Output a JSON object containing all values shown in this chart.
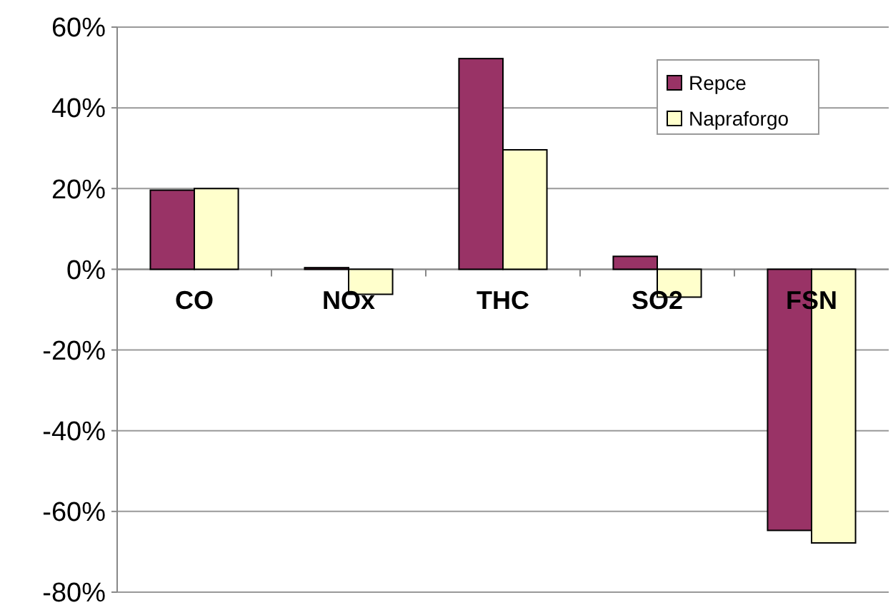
{
  "chart_data": {
    "type": "bar",
    "categories": [
      "CO",
      "NOx",
      "THC",
      "SO2",
      "FSN"
    ],
    "series": [
      {
        "name": "Repce",
        "color": "#993366",
        "values": [
          19.6,
          0.4,
          52.2,
          3.2,
          -64.7
        ]
      },
      {
        "name": "Napraforgo",
        "color": "#ffffcc",
        "values": [
          20.0,
          -6.2,
          29.6,
          -6.9,
          -67.8
        ]
      }
    ],
    "ylim": [
      -80,
      60
    ],
    "yticks": [
      {
        "value": -80,
        "label": "-80%"
      },
      {
        "value": -60,
        "label": "-60%"
      },
      {
        "value": -40,
        "label": "-40%"
      },
      {
        "value": -20,
        "label": "-20%"
      },
      {
        "value": 0,
        "label": "0%"
      },
      {
        "value": 20,
        "label": "20%"
      },
      {
        "value": 40,
        "label": "40%"
      },
      {
        "value": 60,
        "label": "60%"
      }
    ],
    "grid": "y",
    "legend": "top right"
  }
}
